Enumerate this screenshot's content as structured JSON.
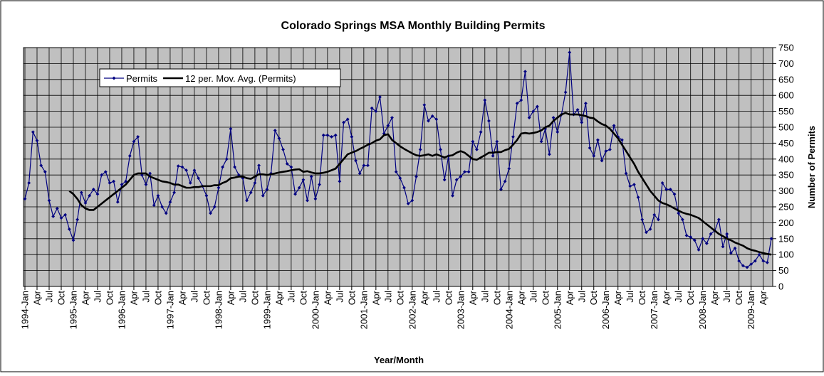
{
  "chart_data": {
    "type": "line",
    "title": "Colorado Springs MSA Monthly Building Permits",
    "x_label": "Year/Month",
    "y_label": "Number of Permits",
    "y_axis_position": "right",
    "categories": [
      "1994-Jan",
      null,
      null,
      "Apr",
      null,
      null,
      "Jul",
      null,
      null,
      "Oct",
      null,
      null,
      "1995-Jan",
      null,
      null,
      "Apr",
      null,
      null,
      "Jul",
      null,
      null,
      "Oct",
      null,
      null,
      "1996-Jan",
      null,
      null,
      "Apr",
      null,
      null,
      "Jul",
      null,
      null,
      "Oct",
      null,
      null,
      "1997-Jan",
      null,
      null,
      "Apr",
      null,
      null,
      "Jul",
      null,
      null,
      "Oct",
      null,
      null,
      "1998-Jan",
      null,
      null,
      "Apr",
      null,
      null,
      "Jul",
      null,
      null,
      "Oct",
      null,
      null,
      "1999-Jan",
      null,
      null,
      "Apr",
      null,
      null,
      "Jul",
      null,
      null,
      "Oct",
      null,
      null,
      "2000-Jan",
      null,
      null,
      "Apr",
      null,
      null,
      "Jul",
      null,
      null,
      "Oct",
      null,
      null,
      "2001-Jan",
      null,
      null,
      "Apr",
      null,
      null,
      "Jul",
      null,
      null,
      "Oct",
      null,
      null,
      "2002-Jan",
      null,
      null,
      "Apr",
      null,
      null,
      "Jul",
      null,
      null,
      "Oct",
      null,
      null,
      "2003-Jan",
      null,
      null,
      "Apr",
      null,
      null,
      "Jul",
      null,
      null,
      "Oct",
      null,
      null,
      "2004-Jan",
      null,
      null,
      "Apr",
      null,
      null,
      "Jul",
      null,
      null,
      "Oct",
      null,
      null,
      "2005-Jan",
      null,
      null,
      "Apr",
      null,
      null,
      "Jul",
      null,
      null,
      "Oct",
      null,
      null,
      "2006-Jan",
      null,
      null,
      "Apr",
      null,
      null,
      "Jul",
      null,
      null,
      "Oct",
      null,
      null,
      "2007-Jan",
      null,
      null,
      "Apr",
      null,
      null,
      "Jul",
      null,
      null,
      "Oct",
      null,
      null,
      "2008-Jan",
      null,
      null,
      "Apr",
      null,
      null,
      "Jul",
      null,
      null,
      "Oct",
      null,
      null,
      "2009-Jan",
      null,
      null,
      "Apr",
      null,
      null
    ],
    "series": [
      {
        "name": "Permits",
        "color": "#000080",
        "marker": "diamond",
        "values": [
          275,
          325,
          485,
          458,
          380,
          360,
          270,
          220,
          245,
          215,
          225,
          180,
          145,
          210,
          295,
          262,
          285,
          305,
          290,
          350,
          360,
          325,
          330,
          265,
          320,
          330,
          410,
          455,
          470,
          350,
          320,
          355,
          255,
          285,
          250,
          230,
          265,
          295,
          378,
          375,
          365,
          325,
          365,
          340,
          315,
          285,
          230,
          250,
          310,
          375,
          400,
          495,
          375,
          350,
          340,
          270,
          295,
          325,
          380,
          285,
          305,
          355,
          490,
          465,
          430,
          385,
          375,
          290,
          310,
          335,
          270,
          345,
          275,
          320,
          475,
          475,
          470,
          475,
          330,
          515,
          525,
          470,
          395,
          355,
          380,
          380,
          560,
          550,
          595,
          480,
          505,
          530,
          360,
          340,
          310,
          260,
          270,
          345,
          430,
          570,
          520,
          535,
          525,
          430,
          335,
          410,
          285,
          335,
          345,
          360,
          360,
          455,
          430,
          485,
          585,
          520,
          410,
          455,
          305,
          330,
          370,
          470,
          575,
          585,
          675,
          530,
          550,
          565,
          455,
          495,
          415,
          530,
          485,
          540,
          610,
          735,
          540,
          555,
          515,
          575,
          435,
          410,
          460,
          395,
          425,
          430,
          505,
          470,
          460,
          355,
          315,
          320,
          280,
          210,
          170,
          180,
          225,
          210,
          325,
          305,
          305,
          290,
          230,
          210,
          160,
          155,
          145,
          115,
          150,
          135,
          165,
          175,
          210,
          125,
          165,
          105,
          120,
          80,
          65,
          60,
          70,
          80,
          100,
          80,
          75,
          150
        ]
      },
      {
        "name": "12 per. Mov. Avg. (Permits)",
        "color": "#000000",
        "values": [
          null,
          null,
          null,
          null,
          null,
          null,
          null,
          null,
          null,
          null,
          null,
          300,
          290,
          275,
          255,
          245,
          240,
          240,
          250,
          260,
          270,
          280,
          290,
          300,
          310,
          320,
          335,
          350,
          355,
          355,
          355,
          345,
          340,
          335,
          330,
          328,
          325,
          320,
          320,
          315,
          310,
          310,
          312,
          312,
          315,
          315,
          315,
          318,
          318,
          325,
          330,
          340,
          342,
          345,
          345,
          340,
          338,
          345,
          352,
          352,
          350,
          352,
          355,
          358,
          360,
          362,
          365,
          367,
          368,
          360,
          362,
          358,
          355,
          355,
          357,
          360,
          365,
          370,
          385,
          400,
          415,
          420,
          425,
          432,
          438,
          445,
          450,
          458,
          462,
          475,
          478,
          460,
          450,
          440,
          432,
          425,
          418,
          412,
          410,
          412,
          415,
          410,
          415,
          410,
          405,
          410,
          412,
          420,
          425,
          420,
          410,
          400,
          398,
          405,
          412,
          420,
          420,
          422,
          422,
          428,
          432,
          445,
          460,
          480,
          482,
          480,
          482,
          485,
          490,
          500,
          505,
          520,
          530,
          540,
          545,
          540,
          540,
          540,
          538,
          535,
          530,
          528,
          518,
          510,
          505,
          495,
          480,
          465,
          445,
          425,
          405,
          385,
          360,
          340,
          320,
          300,
          285,
          270,
          262,
          258,
          252,
          245,
          238,
          232,
          228,
          225,
          220,
          215,
          205,
          195,
          185,
          175,
          165,
          158,
          150,
          145,
          138,
          133,
          128,
          120,
          115,
          112,
          108,
          105,
          102,
          100
        ]
      }
    ],
    "ylim": [
      0,
      750
    ],
    "yticks": [
      0,
      50,
      100,
      150,
      200,
      250,
      300,
      350,
      400,
      450,
      500,
      550,
      600,
      650,
      700,
      750
    ],
    "grid": true,
    "plot_background": "#c0c0c0"
  }
}
